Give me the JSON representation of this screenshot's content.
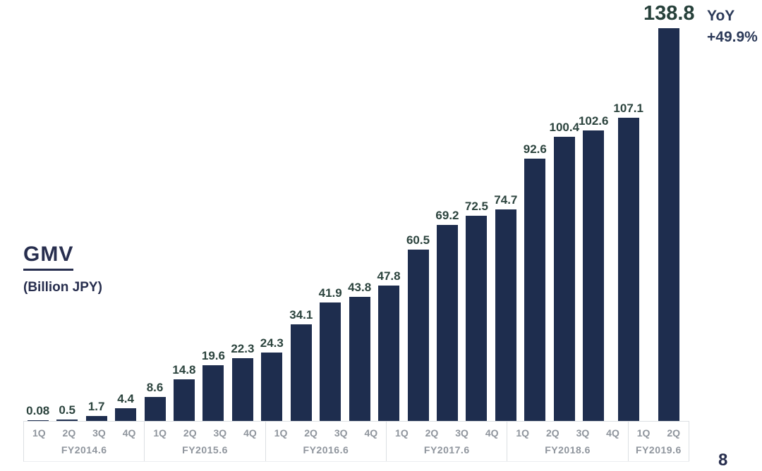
{
  "page": {
    "page_number": "8"
  },
  "chart": {
    "title": "GMV",
    "subtitle": "(Billion JPY)",
    "yoy_label": "YoY",
    "yoy_value": "+49.9%"
  },
  "chart_data": {
    "type": "bar",
    "title": "GMV",
    "ylabel": "Billion JPY",
    "ymax": 138.8,
    "grid": false,
    "legend": "none",
    "bar_color": "#1e2d4e",
    "value_label_color": "#2b433d",
    "axis_label_color": "#8f959d",
    "annotation_color": "#2c3a59",
    "groups": [
      {
        "fiscal_year": "FY2014.6",
        "quarters": [
          "1Q",
          "2Q",
          "3Q",
          "4Q"
        ],
        "values": [
          0.08,
          0.5,
          1.7,
          4.4
        ]
      },
      {
        "fiscal_year": "FY2015.6",
        "quarters": [
          "1Q",
          "2Q",
          "3Q",
          "4Q"
        ],
        "values": [
          8.6,
          14.8,
          19.6,
          22.3
        ]
      },
      {
        "fiscal_year": "FY2016.6",
        "quarters": [
          "1Q",
          "2Q",
          "3Q",
          "4Q"
        ],
        "values": [
          24.3,
          34.1,
          41.9,
          43.8
        ]
      },
      {
        "fiscal_year": "FY2017.6",
        "quarters": [
          "1Q",
          "2Q",
          "3Q",
          "4Q"
        ],
        "values": [
          47.8,
          60.5,
          69.2,
          72.5
        ]
      },
      {
        "fiscal_year": "FY2018.6",
        "quarters": [
          "1Q",
          "2Q",
          "3Q",
          "4Q"
        ],
        "values": [
          74.7,
          92.6,
          100.4,
          102.6
        ]
      },
      {
        "fiscal_year": "FY2019.6",
        "quarters": [
          "1Q",
          "2Q"
        ],
        "values": [
          107.1,
          138.8
        ]
      }
    ],
    "value_labels": [
      "0.08",
      "0.5",
      "1.7",
      "4.4",
      "8.6",
      "14.8",
      "19.6",
      "22.3",
      "24.3",
      "34.1",
      "41.9",
      "43.8",
      "47.8",
      "60.5",
      "69.2",
      "72.5",
      "74.7",
      "92.6",
      "100.4",
      "102.6",
      "107.1",
      "138.8"
    ],
    "annotation": {
      "target": "FY2019.6 2Q",
      "label": "YoY",
      "value": "+49.9%"
    }
  }
}
